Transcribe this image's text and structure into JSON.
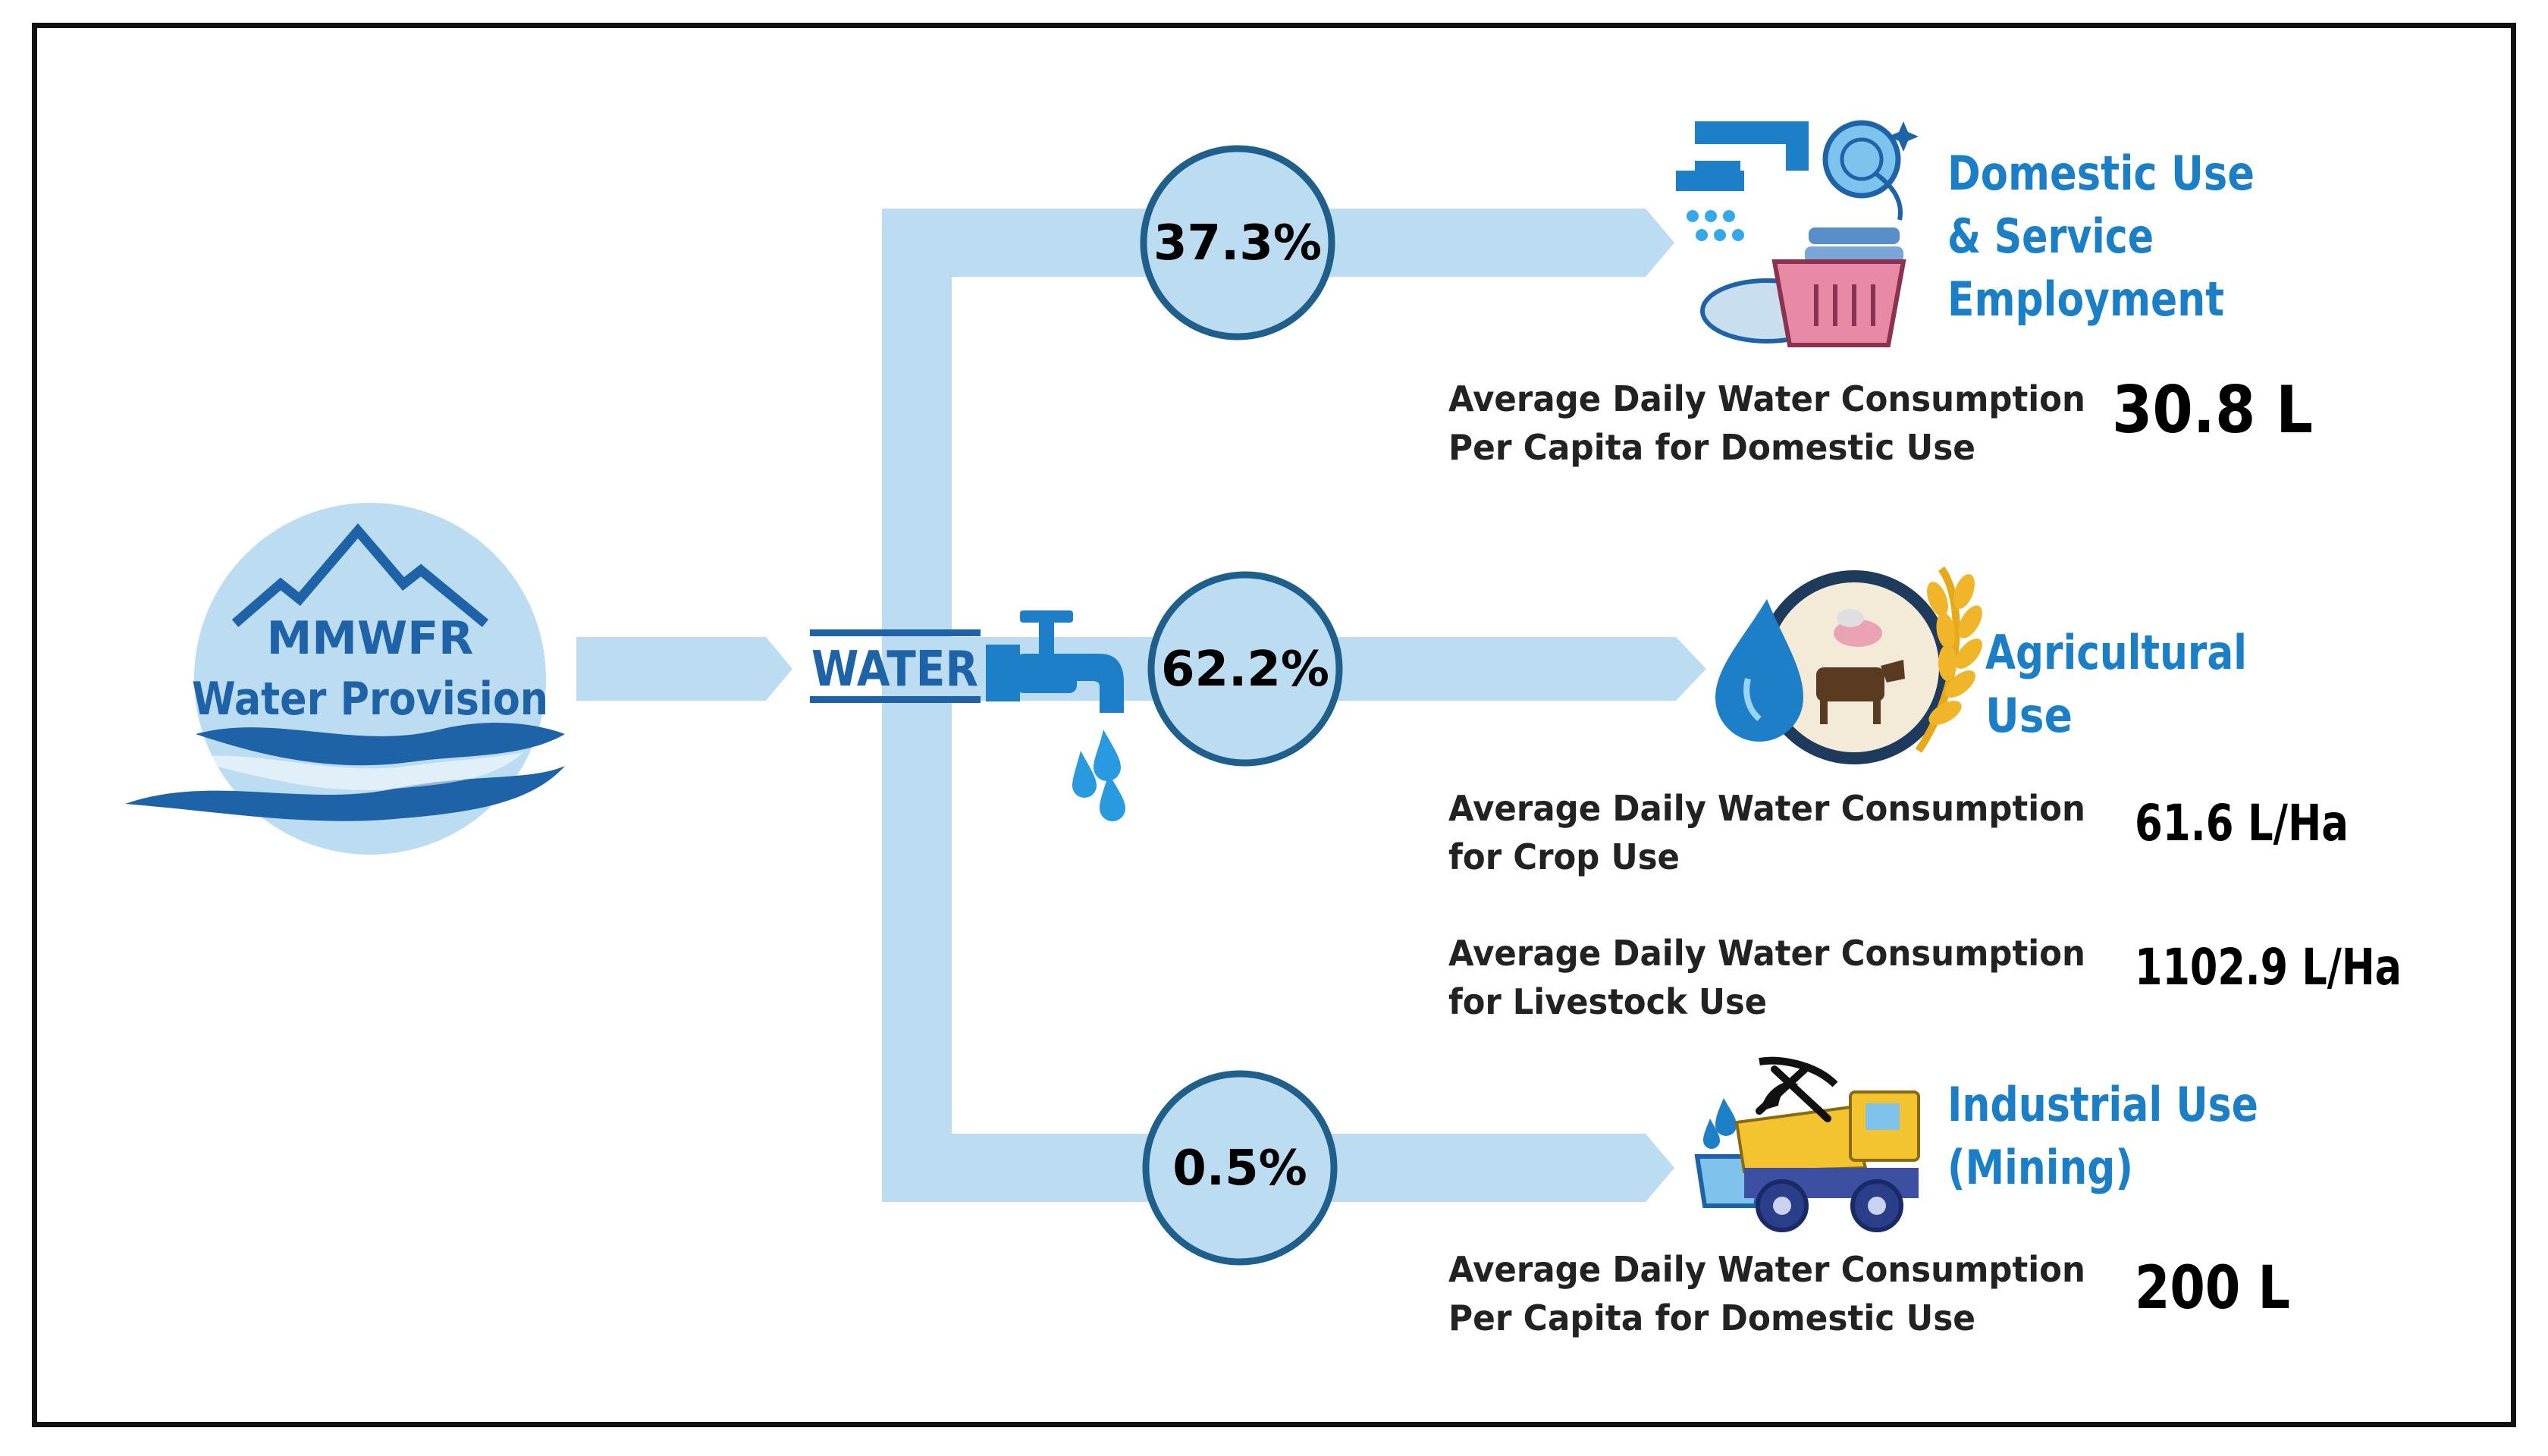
{
  "source": {
    "line1": "MMWFR",
    "line2": "Water Provision"
  },
  "tap_label": "WATER",
  "branches": [
    {
      "percent": "37.3%",
      "category_lines": [
        "Domestic Use",
        "& Service",
        "Employment"
      ],
      "metrics": [
        {
          "description_lines": [
            "Average Daily Water Consumption",
            "Per Capita for Domestic Use"
          ],
          "value": "30.8 L"
        }
      ]
    },
    {
      "percent": "62.2%",
      "category_lines": [
        "Agricultural",
        "Use"
      ],
      "metrics": [
        {
          "description_lines": [
            "Average Daily Water Consumption",
            "for Crop Use"
          ],
          "value": "61.6 L/Ha"
        },
        {
          "description_lines": [
            "Average Daily Water Consumption",
            "for Livestock Use"
          ],
          "value": "1102.9 L/Ha"
        }
      ]
    },
    {
      "percent": "0.5%",
      "category_lines": [
        "Industrial Use",
        "(Mining)"
      ],
      "metrics": [
        {
          "description_lines": [
            "Average Daily Water Consumption",
            "Per Capita for Domestic Use"
          ],
          "value": "200 L"
        }
      ]
    }
  ],
  "colors": {
    "pipe": "#bcdcf2",
    "circle_fill": "#bcdcf2",
    "circle_stroke": "#1f5f8c",
    "accent_blue": "#1a7fc6",
    "dark_blue": "#1e63a8"
  },
  "icons": [
    "mountain-water-logo",
    "faucet-icon",
    "water-drop-icon",
    "laundry-dishes-icon",
    "agriculture-livestock-icon",
    "mining-truck-icon"
  ]
}
